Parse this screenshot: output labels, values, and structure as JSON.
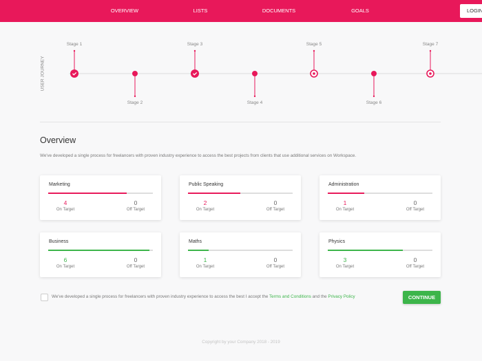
{
  "nav": {
    "items": [
      "OVERVIEW",
      "LISTS",
      "DOCUMENTS",
      "GOALS"
    ],
    "login": "LOGIN"
  },
  "journey": {
    "label": "USER JOURNEY",
    "stages": [
      {
        "label": "Stage 1",
        "state": "done"
      },
      {
        "label": "Stage 2",
        "state": "dot"
      },
      {
        "label": "Stage 3",
        "state": "done"
      },
      {
        "label": "Stage 4",
        "state": "dot"
      },
      {
        "label": "Stage 5",
        "state": "current"
      },
      {
        "label": "Stage 6",
        "state": "dot"
      },
      {
        "label": "Stage 7",
        "state": "current"
      }
    ]
  },
  "overview": {
    "title": "Overview",
    "description": "We've developed a single process for freelancers with proven industry experience to access the best projects from clients that use additional services on Workspace.",
    "cards": [
      {
        "title": "Marketing",
        "progress": 75,
        "color": "#e8185a",
        "on_target": 4,
        "on_label": "On Target",
        "off_target": 0,
        "off_label": "Off Target"
      },
      {
        "title": "Public Speaking",
        "progress": 50,
        "color": "#e8185a",
        "on_target": 2,
        "on_label": "On Target",
        "off_target": 0,
        "off_label": "Off Target"
      },
      {
        "title": "Administration",
        "progress": 35,
        "color": "#e8185a",
        "on_target": 1,
        "on_label": "On Target",
        "off_target": 0,
        "off_label": "Off Target"
      },
      {
        "title": "Business",
        "progress": 97,
        "color": "#3cb54a",
        "on_target": 6,
        "on_label": "On Target",
        "off_target": 0,
        "off_label": "Off Target"
      },
      {
        "title": "Maths",
        "progress": 20,
        "color": "#3cb54a",
        "on_target": 1,
        "on_label": "On Target",
        "off_target": 0,
        "off_label": "Off Target"
      },
      {
        "title": "Physics",
        "progress": 72,
        "color": "#3cb54a",
        "on_target": 3,
        "on_label": "On Target",
        "off_target": 0,
        "off_label": "Off Target"
      }
    ]
  },
  "agreement": {
    "text": "We've developed a single process for freelancers with proven industry experience to access the best I accept the",
    "terms": "Terms and Conditions",
    "joiner": "and the",
    "privacy": "Privacy Policy"
  },
  "continue": "CONTINUE",
  "footer": "Copyright by your Company 2018 - 2019"
}
